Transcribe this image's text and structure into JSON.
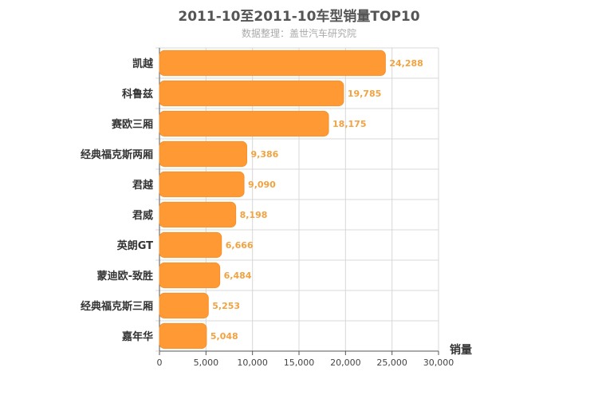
{
  "chart_data": {
    "type": "bar",
    "orientation": "horizontal",
    "title": "2011-10至2011-10车型销量TOP10",
    "subtitle": "数据整理：盖世汽车研究院",
    "xlabel": "销量",
    "ylabel": "",
    "categories": [
      "凯越",
      "科鲁兹",
      "赛欧三厢",
      "经典福克斯两厢",
      "君越",
      "君威",
      "英朗GT",
      "蒙迪欧-致胜",
      "经典福克斯三厢",
      "嘉年华"
    ],
    "values": [
      24288,
      19785,
      18175,
      9386,
      9090,
      8198,
      6666,
      6484,
      5253,
      5048
    ],
    "value_labels": [
      "24,288",
      "19,785",
      "18,175",
      "9,386",
      "9,090",
      "8,198",
      "6,666",
      "6,484",
      "5,253",
      "5,048"
    ],
    "xlim": [
      0,
      30000
    ],
    "xticks": [
      0,
      5000,
      10000,
      15000,
      20000,
      25000,
      30000
    ],
    "xtick_labels": [
      "0",
      "5,000",
      "10,000",
      "15,000",
      "20,000",
      "25,000",
      "30,000"
    ],
    "grid": true,
    "legend": "none",
    "colors": {
      "bar": "#FF9933",
      "bar_stroke": "#F5922E",
      "value_label": "#F2A240",
      "grid": "#D8D8D8",
      "axis": "#555555",
      "category_label": "#333333"
    }
  }
}
